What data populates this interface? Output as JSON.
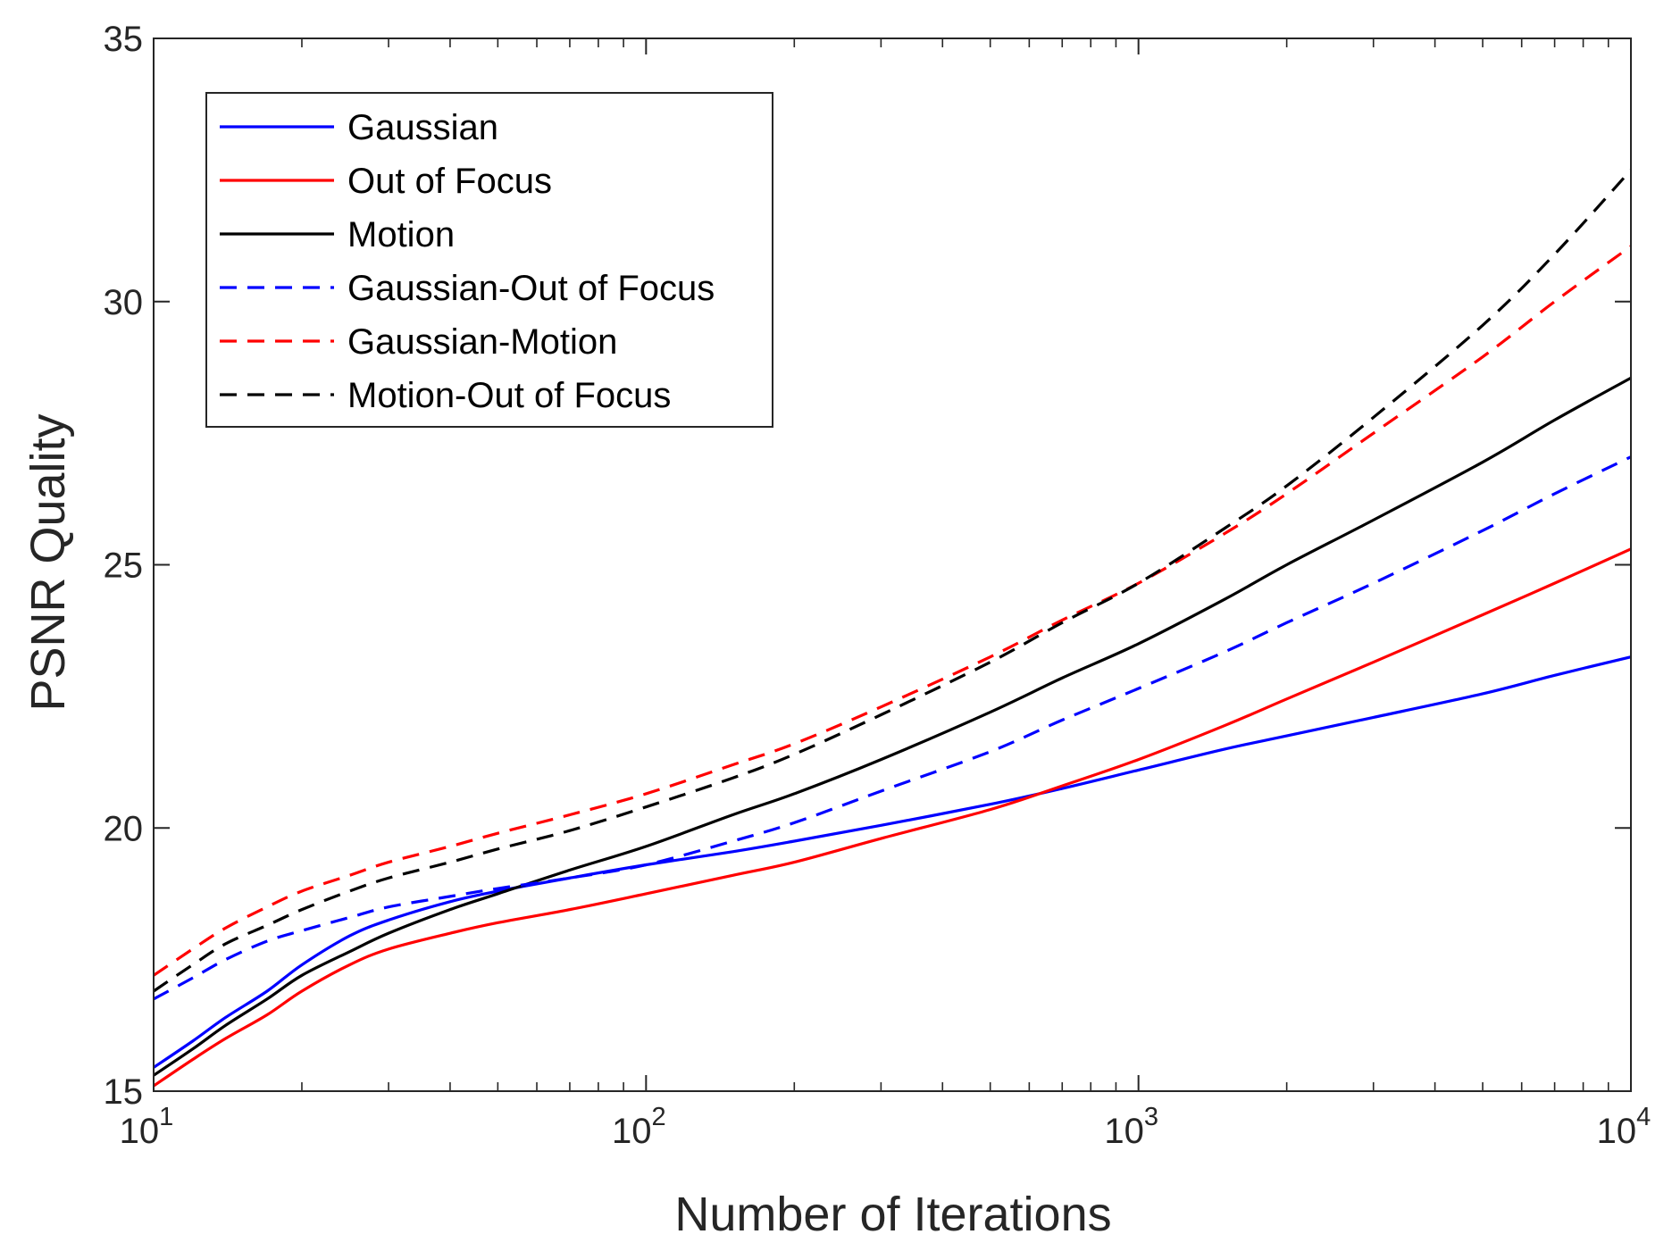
{
  "chart_data": {
    "type": "line",
    "title": "",
    "xlabel": "Number of Iterations",
    "ylabel": "PSNR Quality",
    "xscale": "log",
    "xlim": [
      10,
      10000
    ],
    "ylim": [
      15,
      35
    ],
    "x_ticks": [
      {
        "value": 10,
        "base": "10",
        "exp": "1"
      },
      {
        "value": 100,
        "base": "10",
        "exp": "2"
      },
      {
        "value": 1000,
        "base": "10",
        "exp": "3"
      },
      {
        "value": 10000,
        "base": "10",
        "exp": "4"
      }
    ],
    "y_ticks": [
      {
        "value": 15,
        "label": "15"
      },
      {
        "value": 20,
        "label": "20"
      },
      {
        "value": 25,
        "label": "25"
      },
      {
        "value": 30,
        "label": "30"
      },
      {
        "value": 35,
        "label": "35"
      }
    ],
    "grid": false,
    "legend_position": "top-left",
    "x": [
      10,
      12,
      14,
      17,
      20,
      25,
      30,
      40,
      50,
      70,
      100,
      150,
      200,
      300,
      500,
      700,
      1000,
      1500,
      2000,
      3000,
      5000,
      7000,
      10000
    ],
    "series": [
      {
        "name": "Gaussian",
        "color": "#0000ff",
        "dash": "solid",
        "values": [
          15.45,
          15.95,
          16.4,
          16.9,
          17.4,
          17.95,
          18.25,
          18.6,
          18.8,
          19.05,
          19.3,
          19.55,
          19.75,
          20.05,
          20.45,
          20.75,
          21.1,
          21.5,
          21.75,
          22.1,
          22.55,
          22.9,
          23.25
        ]
      },
      {
        "name": "Out of Focus",
        "color": "#ff0000",
        "dash": "solid",
        "values": [
          15.1,
          15.6,
          16.0,
          16.45,
          16.9,
          17.4,
          17.7,
          18.0,
          18.2,
          18.45,
          18.75,
          19.1,
          19.35,
          19.8,
          20.35,
          20.8,
          21.3,
          21.95,
          22.45,
          23.15,
          24.05,
          24.65,
          25.3
        ]
      },
      {
        "name": "Motion",
        "color": "#000000",
        "dash": "solid",
        "values": [
          15.3,
          15.8,
          16.25,
          16.75,
          17.2,
          17.65,
          18.0,
          18.45,
          18.75,
          19.2,
          19.65,
          20.25,
          20.65,
          21.3,
          22.2,
          22.85,
          23.5,
          24.35,
          25.0,
          25.85,
          26.95,
          27.75,
          28.55
        ]
      },
      {
        "name": "Gaussian-Out of Focus",
        "color": "#0000ff",
        "dash": "dashed",
        "values": [
          16.75,
          17.15,
          17.5,
          17.85,
          18.05,
          18.3,
          18.5,
          18.7,
          18.85,
          19.05,
          19.3,
          19.75,
          20.1,
          20.7,
          21.45,
          22.05,
          22.65,
          23.35,
          23.9,
          24.65,
          25.65,
          26.35,
          27.05
        ]
      },
      {
        "name": "Gaussian-Motion",
        "color": "#ff0000",
        "dash": "dashed",
        "values": [
          17.2,
          17.7,
          18.1,
          18.5,
          18.8,
          19.1,
          19.35,
          19.65,
          19.9,
          20.25,
          20.65,
          21.2,
          21.6,
          22.3,
          23.25,
          23.95,
          24.65,
          25.6,
          26.35,
          27.5,
          28.95,
          30.0,
          31.05
        ]
      },
      {
        "name": "Motion-Out of Focus",
        "color": "#000000",
        "dash": "dashed",
        "values": [
          16.9,
          17.4,
          17.8,
          18.15,
          18.45,
          18.8,
          19.05,
          19.35,
          19.6,
          19.95,
          20.4,
          20.95,
          21.4,
          22.15,
          23.15,
          23.9,
          24.65,
          25.7,
          26.5,
          27.8,
          29.55,
          30.9,
          32.5
        ]
      }
    ]
  }
}
